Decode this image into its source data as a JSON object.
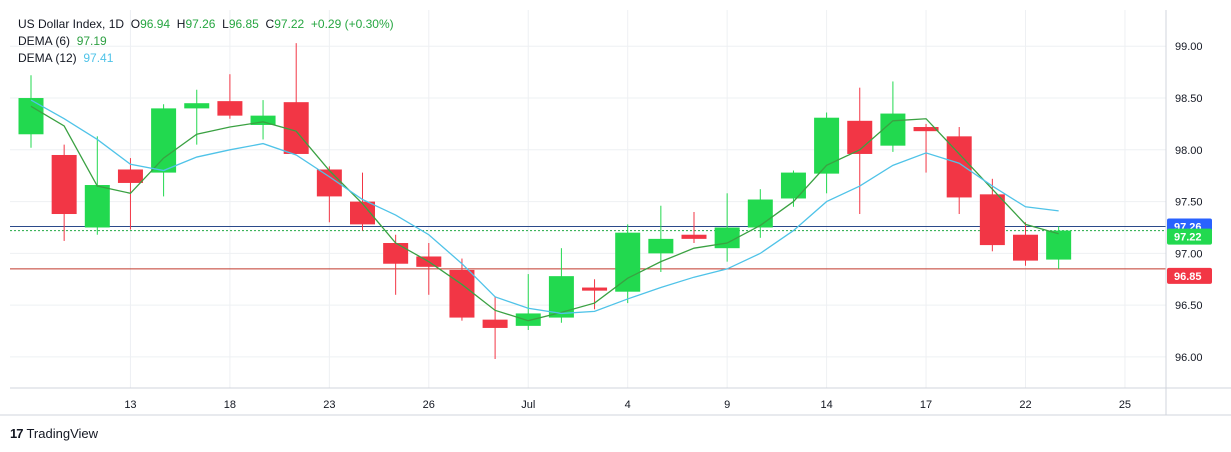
{
  "legend": {
    "symbol": "US Dollar Index, 1D",
    "open_label": "O",
    "open": "96.94",
    "high_label": "H",
    "high": "97.26",
    "low_label": "L",
    "low": "96.85",
    "close_label": "C",
    "close": "97.22",
    "change": "+0.29 (+0.30%)",
    "dema_fast_label": "DEMA (6)",
    "dema_fast_value": "97.19",
    "dema_slow_label": "DEMA (12)",
    "dema_slow_value": "97.41"
  },
  "brand": {
    "logo": "17",
    "name": "TradingView"
  },
  "colors": {
    "up": "#22d94f",
    "down": "#f23645",
    "dema_fast": "#3aa142",
    "dema_slow": "#4fc3e8",
    "high_line": "#2b4a8a",
    "low_line": "#c0392b",
    "close_line": "#22aa44",
    "grid": "#eef0f3"
  },
  "chart_data": {
    "type": "candlestick",
    "ylim": [
      95.7,
      99.35
    ],
    "y_ticks": [
      "96.00",
      "96.50",
      "97.00",
      "97.50",
      "98.00",
      "98.50",
      "99.00"
    ],
    "x_ticks": [
      {
        "index": 3,
        "label": "13"
      },
      {
        "index": 6,
        "label": "18"
      },
      {
        "index": 9,
        "label": "23"
      },
      {
        "index": 12,
        "label": "26"
      },
      {
        "index": 15,
        "label": "Jul"
      },
      {
        "index": 18,
        "label": "4"
      },
      {
        "index": 21,
        "label": "9"
      },
      {
        "index": 24,
        "label": "14"
      },
      {
        "index": 27,
        "label": "17"
      },
      {
        "index": 30,
        "label": "22"
      },
      {
        "index": 33,
        "label": "25"
      }
    ],
    "candles": [
      {
        "o": 98.15,
        "h": 98.72,
        "l": 98.02,
        "c": 98.5
      },
      {
        "o": 97.95,
        "h": 98.05,
        "l": 97.12,
        "c": 97.38
      },
      {
        "o": 97.25,
        "h": 98.13,
        "l": 97.18,
        "c": 97.66
      },
      {
        "o": 97.81,
        "h": 97.92,
        "l": 97.23,
        "c": 97.68
      },
      {
        "o": 97.78,
        "h": 98.44,
        "l": 97.55,
        "c": 98.4
      },
      {
        "o": 98.4,
        "h": 98.58,
        "l": 98.05,
        "c": 98.45
      },
      {
        "o": 98.47,
        "h": 98.73,
        "l": 98.3,
        "c": 98.33
      },
      {
        "o": 98.24,
        "h": 98.48,
        "l": 98.1,
        "c": 98.33
      },
      {
        "o": 98.46,
        "h": 99.03,
        "l": 97.96,
        "c": 97.96
      },
      {
        "o": 97.81,
        "h": 97.84,
        "l": 97.3,
        "c": 97.55
      },
      {
        "o": 97.5,
        "h": 97.78,
        "l": 97.22,
        "c": 97.28
      },
      {
        "o": 97.1,
        "h": 97.18,
        "l": 96.6,
        "c": 96.9
      },
      {
        "o": 96.97,
        "h": 97.1,
        "l": 96.6,
        "c": 96.87
      },
      {
        "o": 96.84,
        "h": 96.95,
        "l": 96.35,
        "c": 96.38
      },
      {
        "o": 96.36,
        "h": 96.58,
        "l": 95.98,
        "c": 96.28
      },
      {
        "o": 96.3,
        "h": 96.8,
        "l": 96.26,
        "c": 96.42
      },
      {
        "o": 96.38,
        "h": 97.05,
        "l": 96.33,
        "c": 96.78
      },
      {
        "o": 96.67,
        "h": 96.75,
        "l": 96.46,
        "c": 96.64
      },
      {
        "o": 96.63,
        "h": 97.28,
        "l": 96.52,
        "c": 97.2
      },
      {
        "o": 97.0,
        "h": 97.46,
        "l": 96.82,
        "c": 97.14
      },
      {
        "o": 97.18,
        "h": 97.4,
        "l": 97.1,
        "c": 97.14
      },
      {
        "o": 97.05,
        "h": 97.58,
        "l": 96.92,
        "c": 97.25
      },
      {
        "o": 97.25,
        "h": 97.62,
        "l": 97.15,
        "c": 97.52
      },
      {
        "o": 97.53,
        "h": 97.8,
        "l": 97.45,
        "c": 97.78
      },
      {
        "o": 97.77,
        "h": 98.36,
        "l": 97.58,
        "c": 98.31
      },
      {
        "o": 98.28,
        "h": 98.6,
        "l": 97.38,
        "c": 97.96
      },
      {
        "o": 98.04,
        "h": 98.66,
        "l": 97.98,
        "c": 98.35
      },
      {
        "o": 98.22,
        "h": 98.25,
        "l": 97.78,
        "c": 98.18
      },
      {
        "o": 98.13,
        "h": 98.22,
        "l": 97.38,
        "c": 97.54
      },
      {
        "o": 97.57,
        "h": 97.72,
        "l": 97.02,
        "c": 97.08
      },
      {
        "o": 97.18,
        "h": 97.3,
        "l": 96.88,
        "c": 96.93
      },
      {
        "o": 96.94,
        "h": 97.26,
        "l": 96.85,
        "c": 97.22
      }
    ],
    "series": [
      {
        "name": "DEMA (6)",
        "values": [
          98.42,
          98.23,
          97.65,
          97.58,
          97.92,
          98.15,
          98.22,
          98.27,
          98.18,
          97.8,
          97.48,
          97.1,
          96.92,
          96.7,
          96.45,
          96.35,
          96.43,
          96.52,
          96.76,
          96.92,
          97.05,
          97.1,
          97.27,
          97.5,
          97.85,
          98.0,
          98.28,
          98.3,
          97.96,
          97.62,
          97.28,
          97.19
        ]
      },
      {
        "name": "DEMA (12)",
        "values": [
          98.48,
          98.3,
          98.1,
          97.86,
          97.8,
          97.93,
          98.0,
          98.06,
          97.95,
          97.74,
          97.52,
          97.37,
          97.18,
          96.9,
          96.58,
          96.47,
          96.42,
          96.44,
          96.56,
          96.67,
          96.77,
          96.85,
          97.0,
          97.22,
          97.5,
          97.65,
          97.85,
          97.97,
          97.87,
          97.65,
          97.45,
          97.41
        ]
      }
    ],
    "price_lines": [
      {
        "value": 97.26,
        "label": "97.26",
        "style": "solid",
        "role": "high"
      },
      {
        "value": 97.22,
        "label": "97.22",
        "style": "dotted",
        "role": "close"
      },
      {
        "value": 96.85,
        "label": "96.85",
        "style": "solid",
        "role": "low"
      }
    ]
  }
}
